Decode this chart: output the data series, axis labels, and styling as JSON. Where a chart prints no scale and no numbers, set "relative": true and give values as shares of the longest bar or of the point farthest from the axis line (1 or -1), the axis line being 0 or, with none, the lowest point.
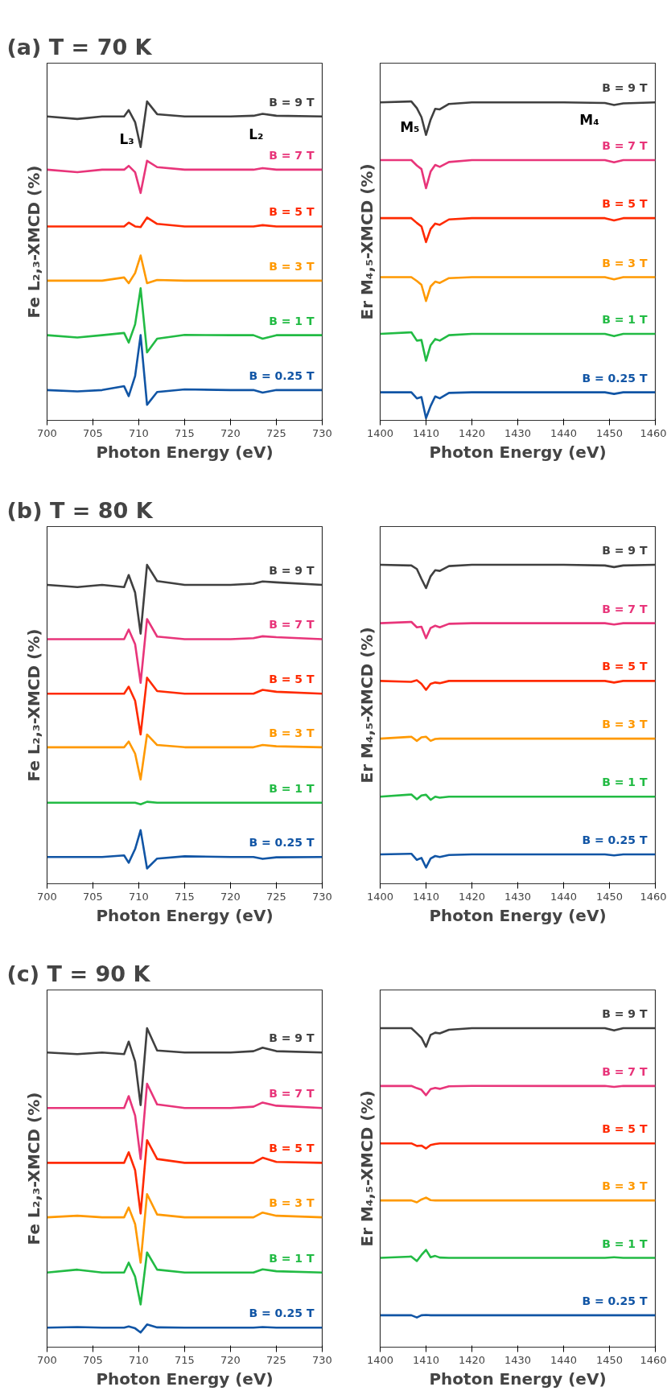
{
  "chart_data": [
    {
      "type": "line",
      "title": "(a) T = 70 K",
      "xlabel": "Photon Energy (eV)",
      "ylabel": "Fe L₂,₃-XMCD (%)",
      "relative": true,
      "xlim": [
        700,
        730
      ],
      "xticks": [
        700,
        705,
        710,
        715,
        720,
        725,
        730
      ],
      "x": [
        700,
        703.3,
        706,
        708.4,
        708.9,
        709.6,
        710.2,
        710.9,
        712,
        715,
        720,
        722.5,
        723.5,
        725,
        730
      ],
      "annotations": [
        "L₃",
        "L₂"
      ],
      "series": [
        {
          "name": "B = 9 T",
          "color": "#404040",
          "values": [
            0.953,
            0.945,
            0.953,
            0.953,
            0.973,
            0.935,
            0.857,
            1.0,
            0.96,
            0.953,
            0.953,
            0.955,
            0.961,
            0.955,
            0.953
          ]
        },
        {
          "name": "B = 7 T",
          "color": "#e8357a",
          "values": [
            0.786,
            0.778,
            0.786,
            0.786,
            0.798,
            0.778,
            0.713,
            0.814,
            0.794,
            0.786,
            0.786,
            0.786,
            0.791,
            0.786,
            0.786
          ]
        },
        {
          "name": "B = 5 T",
          "color": "#ff2a00",
          "values": [
            0.608,
            0.608,
            0.608,
            0.608,
            0.62,
            0.608,
            0.606,
            0.636,
            0.616,
            0.608,
            0.608,
            0.608,
            0.612,
            0.608,
            0.608
          ]
        },
        {
          "name": "B = 3 T",
          "color": "#ff9900",
          "values": [
            0.438,
            0.438,
            0.438,
            0.448,
            0.43,
            0.462,
            0.517,
            0.43,
            0.44,
            0.438,
            0.438,
            0.438,
            0.438,
            0.438,
            0.438
          ]
        },
        {
          "name": "B = 1 T",
          "color": "#22bb44",
          "values": [
            0.267,
            0.26,
            0.267,
            0.274,
            0.244,
            0.301,
            0.414,
            0.213,
            0.256,
            0.268,
            0.267,
            0.267,
            0.256,
            0.267,
            0.267
          ]
        },
        {
          "name": "B = 0.25 T",
          "color": "#1155a5",
          "values": [
            0.095,
            0.091,
            0.095,
            0.107,
            0.076,
            0.139,
            0.267,
            0.049,
            0.089,
            0.097,
            0.095,
            0.095,
            0.087,
            0.095,
            0.095
          ]
        }
      ]
    },
    {
      "type": "line",
      "xlabel": "Photon Energy (eV)",
      "ylabel": "Er M₄,₅-XMCD (%)",
      "relative": true,
      "xlim": [
        1400,
        1460
      ],
      "xticks": [
        1400,
        1410,
        1420,
        1430,
        1440,
        1450,
        1460
      ],
      "x": [
        1400,
        1406.8,
        1408,
        1409,
        1410,
        1411,
        1412,
        1413,
        1415,
        1420,
        1440,
        1449,
        1451,
        1453,
        1460
      ],
      "annotations": [
        "M₅",
        "M₄"
      ],
      "series": [
        {
          "name": "B = 9 T",
          "color": "#404040",
          "values": [
            0.997,
            1.0,
            0.979,
            0.951,
            0.895,
            0.943,
            0.977,
            0.975,
            0.992,
            0.997,
            0.997,
            0.995,
            0.989,
            0.994,
            0.997
          ]
        },
        {
          "name": "B = 7 T",
          "color": "#e8357a",
          "values": [
            0.816,
            0.816,
            0.799,
            0.788,
            0.728,
            0.78,
            0.801,
            0.795,
            0.81,
            0.816,
            0.816,
            0.816,
            0.809,
            0.816,
            0.816
          ]
        },
        {
          "name": "B = 5 T",
          "color": "#ff2a00",
          "values": [
            0.634,
            0.634,
            0.619,
            0.608,
            0.559,
            0.6,
            0.617,
            0.613,
            0.63,
            0.634,
            0.634,
            0.634,
            0.627,
            0.634,
            0.634
          ]
        },
        {
          "name": "B = 3 T",
          "color": "#ff9900",
          "values": [
            0.449,
            0.449,
            0.437,
            0.425,
            0.374,
            0.42,
            0.435,
            0.431,
            0.446,
            0.449,
            0.449,
            0.449,
            0.442,
            0.449,
            0.449
          ]
        },
        {
          "name": "B = 1 T",
          "color": "#22bb44",
          "values": [
            0.271,
            0.276,
            0.25,
            0.252,
            0.187,
            0.236,
            0.255,
            0.25,
            0.267,
            0.271,
            0.271,
            0.271,
            0.264,
            0.271,
            0.271
          ]
        },
        {
          "name": "B = 0.25 T",
          "color": "#1155a5",
          "values": [
            0.088,
            0.088,
            0.069,
            0.073,
            0.007,
            0.045,
            0.075,
            0.069,
            0.086,
            0.088,
            0.088,
            0.088,
            0.083,
            0.088,
            0.088
          ]
        }
      ]
    },
    {
      "type": "line",
      "title": "(b) T = 80 K",
      "xlabel": "Photon Energy (eV)",
      "ylabel": "Fe L₂,₃-XMCD (%)",
      "relative": true,
      "xlim": [
        700,
        730
      ],
      "xticks": [
        700,
        705,
        710,
        715,
        720,
        725,
        730
      ],
      "x": [
        700,
        703.3,
        706,
        708.4,
        708.9,
        709.6,
        710.2,
        710.9,
        712,
        715,
        720,
        722.5,
        723.5,
        725,
        730
      ],
      "series": [
        {
          "name": "B = 9 T",
          "color": "#404040",
          "values": [
            0.937,
            0.93,
            0.937,
            0.93,
            0.968,
            0.913,
            0.784,
            1.0,
            0.949,
            0.937,
            0.937,
            0.941,
            0.948,
            0.945,
            0.937
          ]
        },
        {
          "name": "B = 7 T",
          "color": "#e8357a",
          "values": [
            0.767,
            0.767,
            0.767,
            0.767,
            0.797,
            0.751,
            0.63,
            0.83,
            0.775,
            0.767,
            0.767,
            0.77,
            0.776,
            0.773,
            0.767
          ]
        },
        {
          "name": "B = 5 T",
          "color": "#ff2a00",
          "values": [
            0.596,
            0.596,
            0.596,
            0.596,
            0.618,
            0.574,
            0.468,
            0.646,
            0.604,
            0.596,
            0.596,
            0.596,
            0.608,
            0.602,
            0.596
          ]
        },
        {
          "name": "B = 3 T",
          "color": "#ff9900",
          "values": [
            0.428,
            0.428,
            0.428,
            0.428,
            0.446,
            0.408,
            0.327,
            0.468,
            0.435,
            0.428,
            0.428,
            0.428,
            0.435,
            0.431,
            0.428
          ]
        },
        {
          "name": "B = 1 T",
          "color": "#22bb44",
          "values": [
            0.254,
            0.254,
            0.254,
            0.254,
            0.254,
            0.254,
            0.249,
            0.257,
            0.254,
            0.254,
            0.254,
            0.254,
            0.254,
            0.254,
            0.254
          ]
        },
        {
          "name": "B = 0.25 T",
          "color": "#1155a5",
          "values": [
            0.084,
            0.084,
            0.084,
            0.089,
            0.066,
            0.109,
            0.168,
            0.048,
            0.079,
            0.086,
            0.084,
            0.084,
            0.078,
            0.083,
            0.084
          ]
        }
      ]
    },
    {
      "type": "line",
      "xlabel": "Photon Energy (eV)",
      "ylabel": "Er M₄,₅-XMCD (%)",
      "relative": true,
      "xlim": [
        1400,
        1460
      ],
      "xticks": [
        1400,
        1410,
        1420,
        1430,
        1440,
        1450,
        1460
      ],
      "x": [
        1400,
        1406.8,
        1408,
        1409,
        1410,
        1411,
        1412,
        1413,
        1415,
        1420,
        1440,
        1449,
        1451,
        1453,
        1460
      ],
      "series": [
        {
          "name": "B = 9 T",
          "color": "#404040",
          "values": [
            1.0,
            0.998,
            0.987,
            0.956,
            0.927,
            0.964,
            0.983,
            0.981,
            0.996,
            1.0,
            1.0,
            0.998,
            0.993,
            0.998,
            1.0
          ]
        },
        {
          "name": "B = 7 T",
          "color": "#e8357a",
          "values": [
            0.817,
            0.821,
            0.804,
            0.806,
            0.77,
            0.802,
            0.809,
            0.804,
            0.815,
            0.817,
            0.817,
            0.817,
            0.813,
            0.817,
            0.817
          ]
        },
        {
          "name": "B = 5 T",
          "color": "#ff2a00",
          "values": [
            0.636,
            0.633,
            0.638,
            0.627,
            0.608,
            0.627,
            0.631,
            0.629,
            0.636,
            0.636,
            0.636,
            0.636,
            0.631,
            0.636,
            0.636
          ]
        },
        {
          "name": "B = 3 T",
          "color": "#ff9900",
          "values": [
            0.455,
            0.461,
            0.448,
            0.459,
            0.461,
            0.448,
            0.454,
            0.455,
            0.455,
            0.455,
            0.455,
            0.455,
            0.455,
            0.455,
            0.455
          ]
        },
        {
          "name": "B = 1 T",
          "color": "#22bb44",
          "values": [
            0.273,
            0.28,
            0.265,
            0.277,
            0.279,
            0.263,
            0.273,
            0.27,
            0.273,
            0.273,
            0.273,
            0.273,
            0.273,
            0.273,
            0.273
          ]
        },
        {
          "name": "B = 0.25 T",
          "color": "#1155a5",
          "values": [
            0.092,
            0.094,
            0.075,
            0.081,
            0.051,
            0.079,
            0.087,
            0.084,
            0.09,
            0.092,
            0.092,
            0.092,
            0.089,
            0.092,
            0.092
          ]
        }
      ]
    },
    {
      "type": "line",
      "title": "(c) T = 90 K",
      "xlabel": "Photon Energy (eV)",
      "ylabel": "Fe L₂,₃-XMCD (%)",
      "relative": true,
      "xlim": [
        700,
        730
      ],
      "xticks": [
        700,
        705,
        710,
        715,
        720,
        725,
        730
      ],
      "x": [
        700,
        703.3,
        706,
        708.4,
        708.9,
        709.6,
        710.2,
        710.9,
        712,
        715,
        720,
        722.5,
        723.5,
        725,
        730
      ],
      "series": [
        {
          "name": "B = 9 T",
          "color": "#404040",
          "values": [
            0.924,
            0.919,
            0.924,
            0.919,
            0.958,
            0.896,
            0.759,
            1.0,
            0.93,
            0.924,
            0.924,
            0.928,
            0.939,
            0.928,
            0.924
          ]
        },
        {
          "name": "B = 7 T",
          "color": "#e8357a",
          "values": [
            0.75,
            0.75,
            0.75,
            0.75,
            0.787,
            0.726,
            0.59,
            0.826,
            0.761,
            0.75,
            0.75,
            0.754,
            0.767,
            0.757,
            0.75
          ]
        },
        {
          "name": "B = 5 T",
          "color": "#ff2a00",
          "values": [
            0.578,
            0.578,
            0.578,
            0.578,
            0.611,
            0.555,
            0.419,
            0.649,
            0.59,
            0.578,
            0.578,
            0.578,
            0.594,
            0.581,
            0.578
          ]
        },
        {
          "name": "B = 3 T",
          "color": "#ff9900",
          "values": [
            0.407,
            0.412,
            0.407,
            0.407,
            0.438,
            0.386,
            0.265,
            0.48,
            0.416,
            0.407,
            0.407,
            0.407,
            0.422,
            0.412,
            0.407
          ]
        },
        {
          "name": "B = 1 T",
          "color": "#22bb44",
          "values": [
            0.234,
            0.243,
            0.234,
            0.234,
            0.265,
            0.221,
            0.134,
            0.297,
            0.243,
            0.234,
            0.234,
            0.234,
            0.244,
            0.238,
            0.234
          ]
        },
        {
          "name": "B = 0.25 T",
          "color": "#1155a5",
          "values": [
            0.061,
            0.063,
            0.061,
            0.061,
            0.065,
            0.059,
            0.046,
            0.071,
            0.062,
            0.061,
            0.061,
            0.061,
            0.063,
            0.061,
            0.061
          ]
        }
      ]
    },
    {
      "type": "line",
      "xlabel": "Photon Energy (eV)",
      "ylabel": "Er M₄,₅-XMCD (%)",
      "relative": true,
      "xlim": [
        1400,
        1460
      ],
      "xticks": [
        1400,
        1410,
        1420,
        1430,
        1440,
        1450,
        1460
      ],
      "x": [
        1400,
        1406.8,
        1408,
        1409,
        1410,
        1411,
        1412,
        1413,
        1415,
        1420,
        1440,
        1449,
        1451,
        1453,
        1460
      ],
      "series": [
        {
          "name": "B = 9 T",
          "color": "#404040",
          "values": [
            1.0,
            1.0,
            0.984,
            0.97,
            0.942,
            0.979,
            0.986,
            0.984,
            0.995,
            1.0,
            1.0,
            1.0,
            0.993,
            1.0,
            1.0
          ]
        },
        {
          "name": "B = 7 T",
          "color": "#e8357a",
          "values": [
            0.819,
            0.819,
            0.812,
            0.807,
            0.79,
            0.809,
            0.813,
            0.81,
            0.818,
            0.819,
            0.819,
            0.819,
            0.816,
            0.819,
            0.819
          ]
        },
        {
          "name": "B = 5 T",
          "color": "#ff2a00",
          "values": [
            0.639,
            0.639,
            0.631,
            0.632,
            0.623,
            0.634,
            0.637,
            0.639,
            0.639,
            0.639,
            0.639,
            0.639,
            0.639,
            0.639,
            0.639
          ]
        },
        {
          "name": "B = 3 T",
          "color": "#ff9900",
          "values": [
            0.46,
            0.46,
            0.454,
            0.463,
            0.469,
            0.461,
            0.46,
            0.46,
            0.46,
            0.46,
            0.46,
            0.46,
            0.46,
            0.46,
            0.46
          ]
        },
        {
          "name": "B = 1 T",
          "color": "#22bb44",
          "values": [
            0.28,
            0.284,
            0.27,
            0.289,
            0.305,
            0.282,
            0.286,
            0.281,
            0.28,
            0.28,
            0.28,
            0.28,
            0.282,
            0.28,
            0.28
          ]
        },
        {
          "name": "B = 0.25 T",
          "color": "#1155a5",
          "values": [
            0.1,
            0.1,
            0.093,
            0.1,
            0.101,
            0.1,
            0.1,
            0.1,
            0.1,
            0.1,
            0.1,
            0.1,
            0.1,
            0.1,
            0.1
          ]
        }
      ]
    }
  ]
}
